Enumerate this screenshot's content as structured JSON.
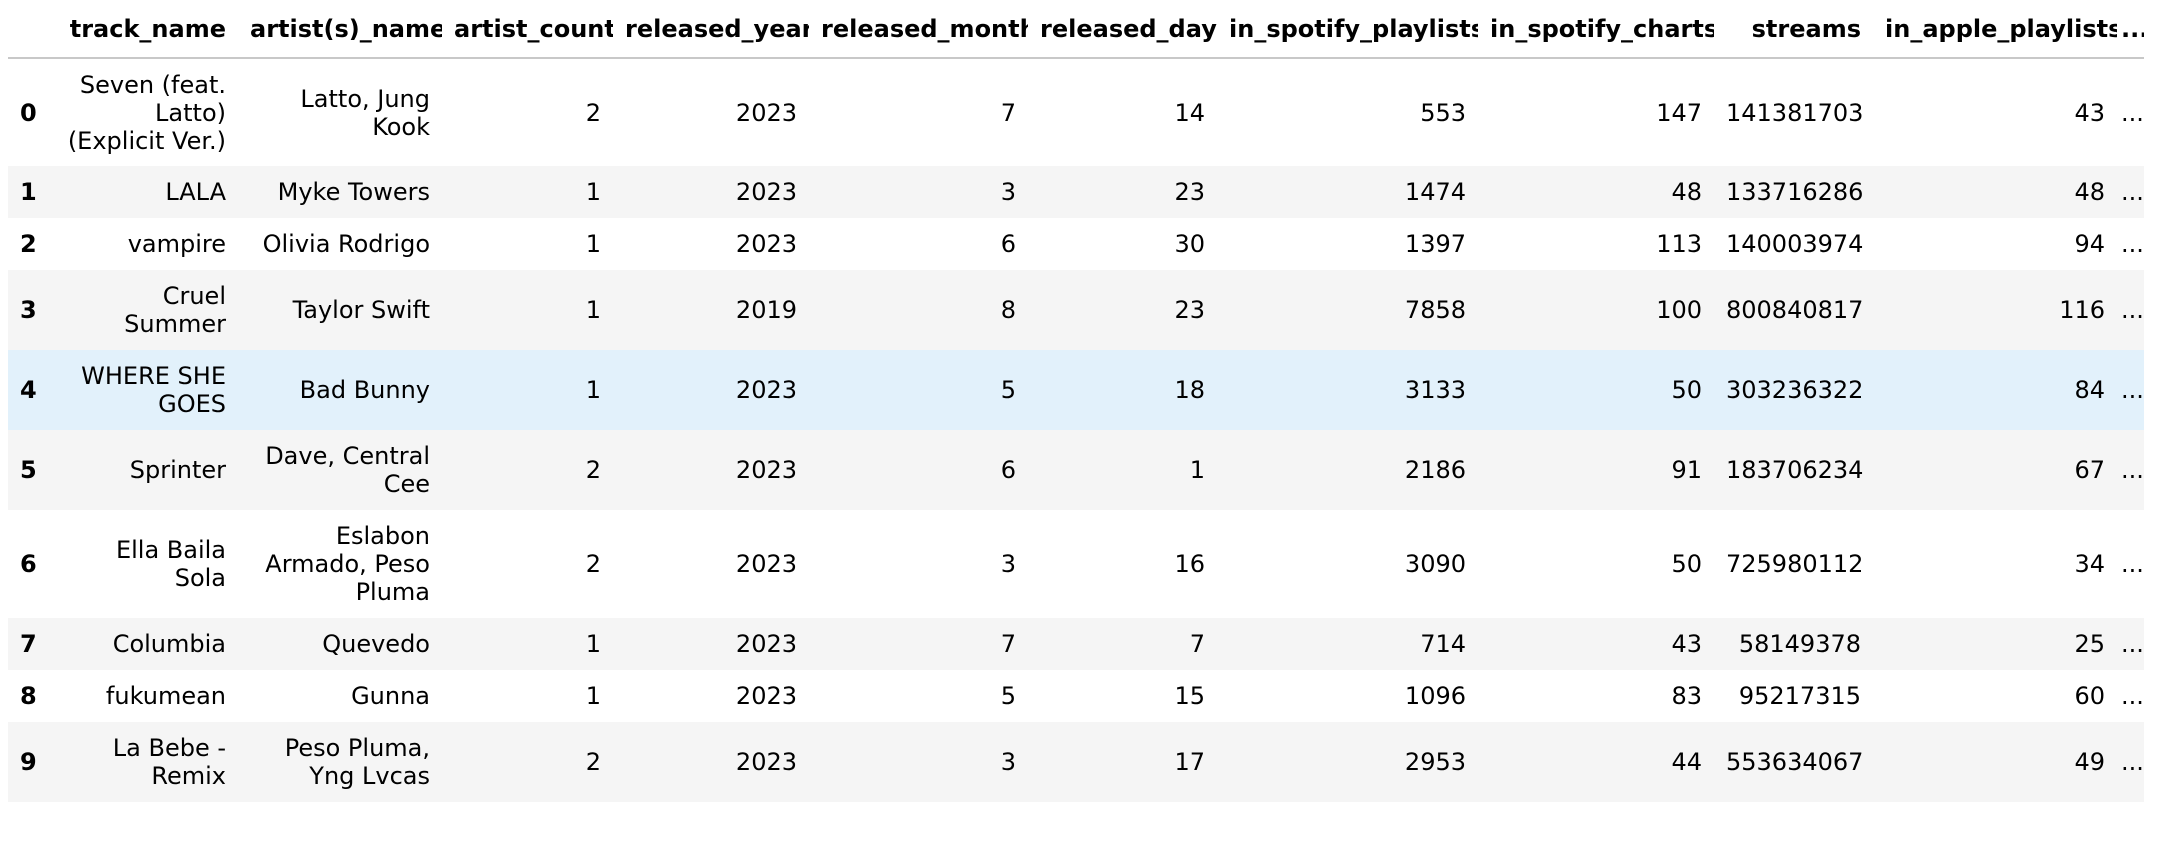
{
  "table": {
    "columns": [
      "",
      "track_name",
      "artist(s)_name",
      "artist_count",
      "released_year",
      "released_month",
      "released_day",
      "in_spotify_playlists",
      "in_spotify_charts",
      "streams",
      "in_apple_playlists",
      "..."
    ],
    "rows": [
      {
        "index": "0",
        "cells": [
          "Seven (feat. Latto) (Explicit Ver.)",
          "Latto, Jung Kook",
          "2",
          "2023",
          "7",
          "14",
          "553",
          "147",
          "141381703",
          "43",
          "..."
        ]
      },
      {
        "index": "1",
        "cells": [
          "LALA",
          "Myke Towers",
          "1",
          "2023",
          "3",
          "23",
          "1474",
          "48",
          "133716286",
          "48",
          "..."
        ]
      },
      {
        "index": "2",
        "cells": [
          "vampire",
          "Olivia Rodrigo",
          "1",
          "2023",
          "6",
          "30",
          "1397",
          "113",
          "140003974",
          "94",
          "..."
        ]
      },
      {
        "index": "3",
        "cells": [
          "Cruel Summer",
          "Taylor Swift",
          "1",
          "2019",
          "8",
          "23",
          "7858",
          "100",
          "800840817",
          "116",
          "..."
        ]
      },
      {
        "index": "4",
        "cells": [
          "WHERE SHE GOES",
          "Bad Bunny",
          "1",
          "2023",
          "5",
          "18",
          "3133",
          "50",
          "303236322",
          "84",
          "..."
        ]
      },
      {
        "index": "5",
        "cells": [
          "Sprinter",
          "Dave, Central Cee",
          "2",
          "2023",
          "6",
          "1",
          "2186",
          "91",
          "183706234",
          "67",
          "..."
        ]
      },
      {
        "index": "6",
        "cells": [
          "Ella Baila Sola",
          "Eslabon Armado, Peso Pluma",
          "2",
          "2023",
          "3",
          "16",
          "3090",
          "50",
          "725980112",
          "34",
          "..."
        ]
      },
      {
        "index": "7",
        "cells": [
          "Columbia",
          "Quevedo",
          "1",
          "2023",
          "7",
          "7",
          "714",
          "43",
          "58149378",
          "25",
          "..."
        ]
      },
      {
        "index": "8",
        "cells": [
          "fukumean",
          "Gunna",
          "1",
          "2023",
          "5",
          "15",
          "1096",
          "83",
          "95217315",
          "60",
          "..."
        ]
      },
      {
        "index": "9",
        "cells": [
          "La Bebe - Remix",
          "Peso Pluma, Yng Lvcas",
          "2",
          "2023",
          "3",
          "17",
          "2953",
          "44",
          "553634067",
          "49",
          "..."
        ]
      }
    ]
  },
  "colors": {
    "stripe": "#f5f5f5",
    "hover": "#e2f1fb",
    "header_rule": "#c8c8c8"
  }
}
